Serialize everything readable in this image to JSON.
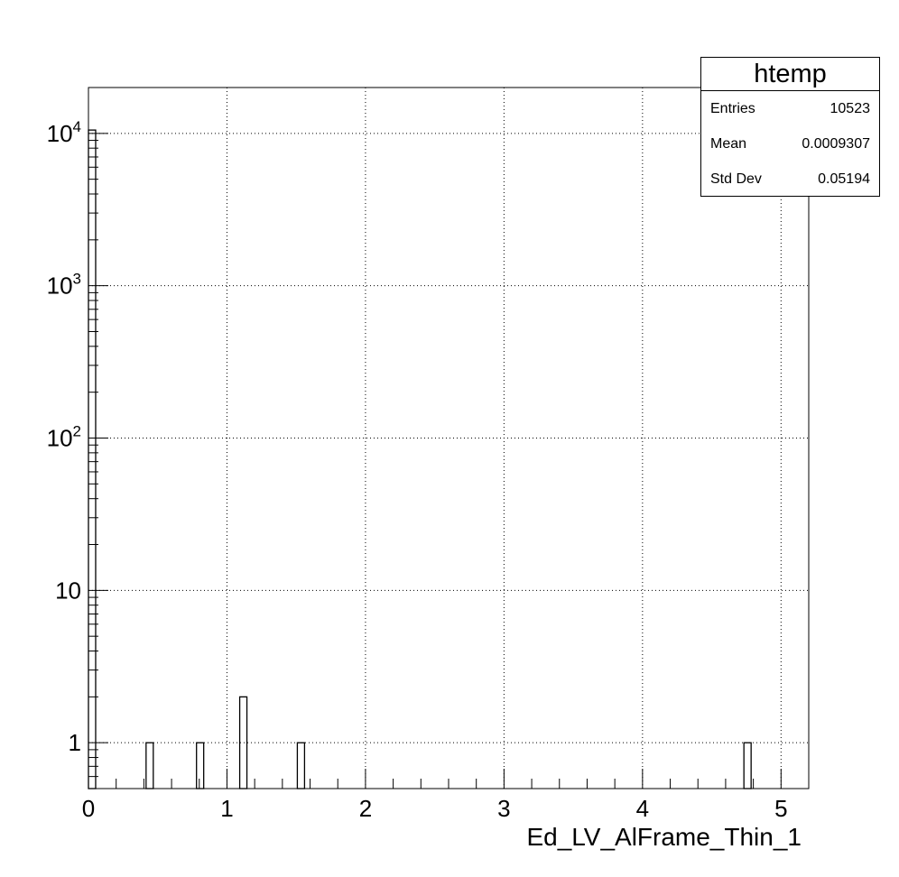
{
  "chart_data": {
    "type": "bar",
    "title": "",
    "xlabel": "Ed_LV_AlFrame_Thin_1",
    "ylabel": "",
    "xlim": [
      0,
      5.2
    ],
    "ylim": [
      0.5,
      20000
    ],
    "yscale": "log",
    "grid": true,
    "x_ticks": [
      {
        "value": 0,
        "label": "0"
      },
      {
        "value": 1,
        "label": "1"
      },
      {
        "value": 2,
        "label": "2"
      },
      {
        "value": 3,
        "label": "3"
      },
      {
        "value": 4,
        "label": "4"
      },
      {
        "value": 5,
        "label": "5"
      }
    ],
    "y_ticks": [
      {
        "value": 1,
        "base": "1",
        "exp": ""
      },
      {
        "value": 10,
        "base": "10",
        "exp": ""
      },
      {
        "value": 100,
        "base": "10",
        "exp": "2"
      },
      {
        "value": 1000,
        "base": "10",
        "exp": "3"
      },
      {
        "value": 10000,
        "base": "10",
        "exp": "4"
      }
    ],
    "bins": [
      {
        "x0": 0.0,
        "x1": 0.052,
        "count": 10517
      },
      {
        "x0": 0.416,
        "x1": 0.468,
        "count": 1
      },
      {
        "x0": 0.78,
        "x1": 0.832,
        "count": 1
      },
      {
        "x0": 1.092,
        "x1": 1.144,
        "count": 2
      },
      {
        "x0": 1.508,
        "x1": 1.56,
        "count": 1
      },
      {
        "x0": 4.732,
        "x1": 4.784,
        "count": 1
      }
    ],
    "legend": "top-right"
  },
  "stats": {
    "title": "htemp",
    "rows": [
      {
        "label": "Entries",
        "value": "10523"
      },
      {
        "label": "Mean",
        "value": "0.0009307"
      },
      {
        "label": "Std Dev",
        "value": "0.05194"
      }
    ]
  }
}
